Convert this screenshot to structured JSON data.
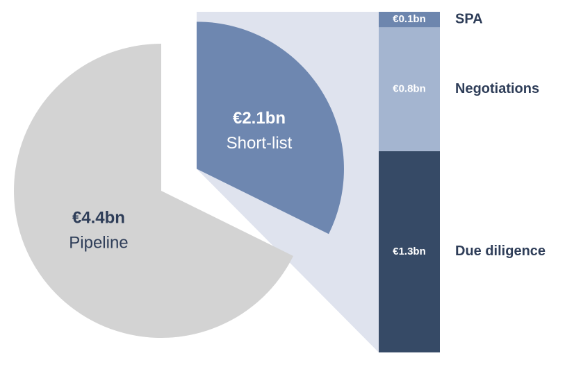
{
  "chart_data": [
    {
      "type": "pie",
      "categories": [
        "Short-list",
        "Pipeline"
      ],
      "values": [
        2.1,
        4.4
      ],
      "value_labels": [
        "€2.1bn",
        "€4.4bn"
      ],
      "colors": [
        "#6e87b0",
        "#d3d3d3"
      ],
      "label_colors": [
        "#ffffff",
        "#2e3d58"
      ]
    },
    {
      "type": "bar",
      "stacked": true,
      "series": [
        {
          "name": "Due diligence",
          "color": "#364a66",
          "values": [
            1.3
          ],
          "value_labels": [
            "€1.3bn"
          ]
        },
        {
          "name": "Negotiations",
          "color": "#a4b5d0",
          "values": [
            0.8
          ],
          "value_labels": [
            "€0.8bn"
          ]
        },
        {
          "name": "SPA",
          "color": "#6d86ae",
          "values": [
            0.1
          ],
          "value_labels": [
            "€0.1bn"
          ]
        }
      ]
    }
  ]
}
